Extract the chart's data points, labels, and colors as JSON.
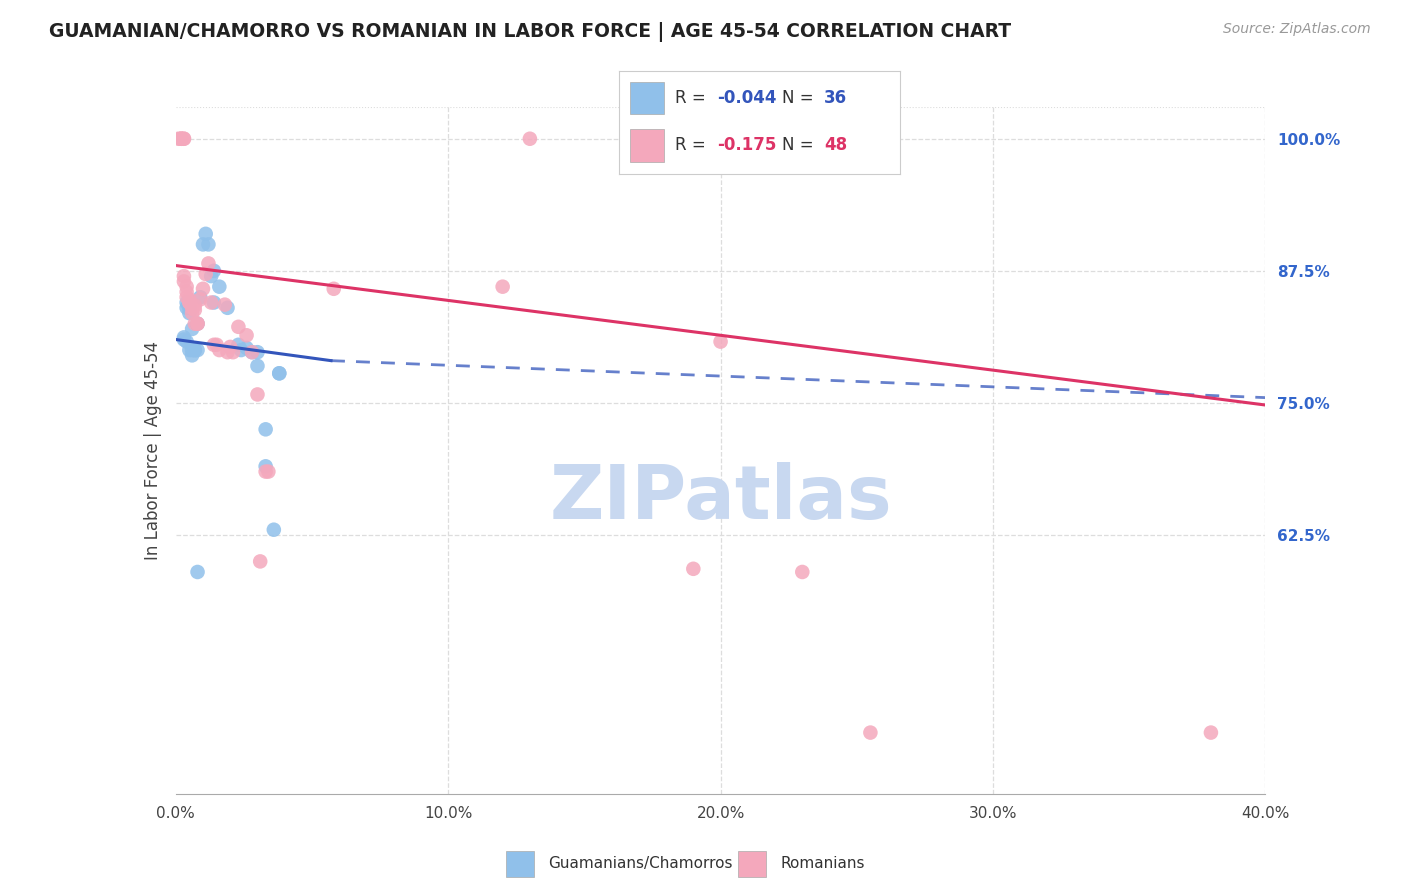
{
  "title": "GUAMANIAN/CHAMORRO VS ROMANIAN IN LABOR FORCE | AGE 45-54 CORRELATION CHART",
  "source": "Source: ZipAtlas.com",
  "ylabel": "In Labor Force | Age 45-54",
  "xlim": [
    0.0,
    0.4
  ],
  "ylim": [
    0.38,
    1.03
  ],
  "xtick_labels": [
    "0.0%",
    "10.0%",
    "20.0%",
    "30.0%",
    "40.0%"
  ],
  "xtick_vals": [
    0.0,
    0.1,
    0.2,
    0.3,
    0.4
  ],
  "ytick_labels_right": [
    "100.0%",
    "87.5%",
    "75.0%",
    "62.5%"
  ],
  "ytick_vals_right": [
    1.0,
    0.875,
    0.75,
    0.625
  ],
  "R_blue": -0.044,
  "N_blue": 36,
  "R_pink": -0.175,
  "N_pink": 48,
  "blue_color": "#90C0EA",
  "pink_color": "#F4A8BC",
  "blue_line_color": "#3355BB",
  "pink_line_color": "#DD3366",
  "blue_line": [
    [
      0.0,
      0.81
    ],
    [
      0.057,
      0.79
    ]
  ],
  "blue_line_dash": [
    [
      0.057,
      0.79
    ],
    [
      0.4,
      0.755
    ]
  ],
  "pink_line": [
    [
      0.0,
      0.88
    ],
    [
      0.4,
      0.748
    ]
  ],
  "blue_scatter": [
    [
      0.003,
      0.81
    ],
    [
      0.003,
      0.812
    ],
    [
      0.004,
      0.808
    ],
    [
      0.004,
      0.84
    ],
    [
      0.004,
      0.845
    ],
    [
      0.005,
      0.84
    ],
    [
      0.005,
      0.835
    ],
    [
      0.005,
      0.8
    ],
    [
      0.006,
      0.8
    ],
    [
      0.006,
      0.795
    ],
    [
      0.006,
      0.82
    ],
    [
      0.007,
      0.8
    ],
    [
      0.007,
      0.8
    ],
    [
      0.008,
      0.825
    ],
    [
      0.008,
      0.8
    ],
    [
      0.009,
      0.85
    ],
    [
      0.01,
      0.9
    ],
    [
      0.011,
      0.91
    ],
    [
      0.012,
      0.9
    ],
    [
      0.013,
      0.87
    ],
    [
      0.014,
      0.875
    ],
    [
      0.014,
      0.845
    ],
    [
      0.016,
      0.86
    ],
    [
      0.019,
      0.84
    ],
    [
      0.023,
      0.805
    ],
    [
      0.024,
      0.8
    ],
    [
      0.026,
      0.802
    ],
    [
      0.028,
      0.798
    ],
    [
      0.03,
      0.798
    ],
    [
      0.03,
      0.785
    ],
    [
      0.033,
      0.725
    ],
    [
      0.033,
      0.69
    ],
    [
      0.036,
      0.63
    ],
    [
      0.038,
      0.778
    ],
    [
      0.038,
      0.778
    ],
    [
      0.008,
      0.59
    ]
  ],
  "pink_scatter": [
    [
      0.001,
      1.0
    ],
    [
      0.002,
      1.0
    ],
    [
      0.002,
      1.0
    ],
    [
      0.002,
      1.0
    ],
    [
      0.003,
      1.0
    ],
    [
      0.003,
      1.0
    ],
    [
      0.003,
      0.87
    ],
    [
      0.003,
      0.865
    ],
    [
      0.004,
      0.86
    ],
    [
      0.004,
      0.85
    ],
    [
      0.004,
      0.855
    ],
    [
      0.005,
      0.845
    ],
    [
      0.005,
      0.845
    ],
    [
      0.005,
      0.848
    ],
    [
      0.006,
      0.84
    ],
    [
      0.006,
      0.835
    ],
    [
      0.007,
      0.825
    ],
    [
      0.007,
      0.838
    ],
    [
      0.007,
      0.842
    ],
    [
      0.008,
      0.825
    ],
    [
      0.008,
      0.825
    ],
    [
      0.009,
      0.848
    ],
    [
      0.01,
      0.858
    ],
    [
      0.011,
      0.872
    ],
    [
      0.012,
      0.882
    ],
    [
      0.013,
      0.845
    ],
    [
      0.014,
      0.805
    ],
    [
      0.015,
      0.805
    ],
    [
      0.016,
      0.8
    ],
    [
      0.018,
      0.843
    ],
    [
      0.019,
      0.798
    ],
    [
      0.02,
      0.803
    ],
    [
      0.021,
      0.798
    ],
    [
      0.023,
      0.822
    ],
    [
      0.026,
      0.814
    ],
    [
      0.028,
      0.798
    ],
    [
      0.03,
      0.758
    ],
    [
      0.031,
      0.6
    ],
    [
      0.033,
      0.685
    ],
    [
      0.034,
      0.685
    ],
    [
      0.058,
      0.858
    ],
    [
      0.12,
      0.86
    ],
    [
      0.2,
      0.808
    ],
    [
      0.13,
      1.0
    ],
    [
      0.19,
      0.593
    ],
    [
      0.23,
      0.59
    ],
    [
      0.255,
      0.438
    ],
    [
      0.38,
      0.438
    ]
  ],
  "watermark": "ZIPatlas",
  "watermark_color": "#C8D8F0",
  "background_color": "#FFFFFF",
  "grid_color": "#DDDDDD",
  "grid_linestyle": "--"
}
